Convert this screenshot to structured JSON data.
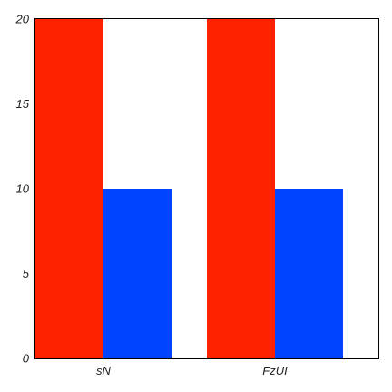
{
  "chart_data": {
    "type": "bar",
    "categories": [
      "sN",
      "FzUI"
    ],
    "series": [
      {
        "values": [
          20,
          20
        ],
        "color": "#ff2200"
      },
      {
        "values": [
          10,
          10
        ],
        "color": "#0044ff"
      }
    ],
    "ylim": [
      0,
      20
    ],
    "yticks": [
      "0",
      "5",
      "10",
      "15",
      "20"
    ],
    "grid": false,
    "legend": false,
    "title": "",
    "xlabel": "",
    "ylabel": ""
  }
}
